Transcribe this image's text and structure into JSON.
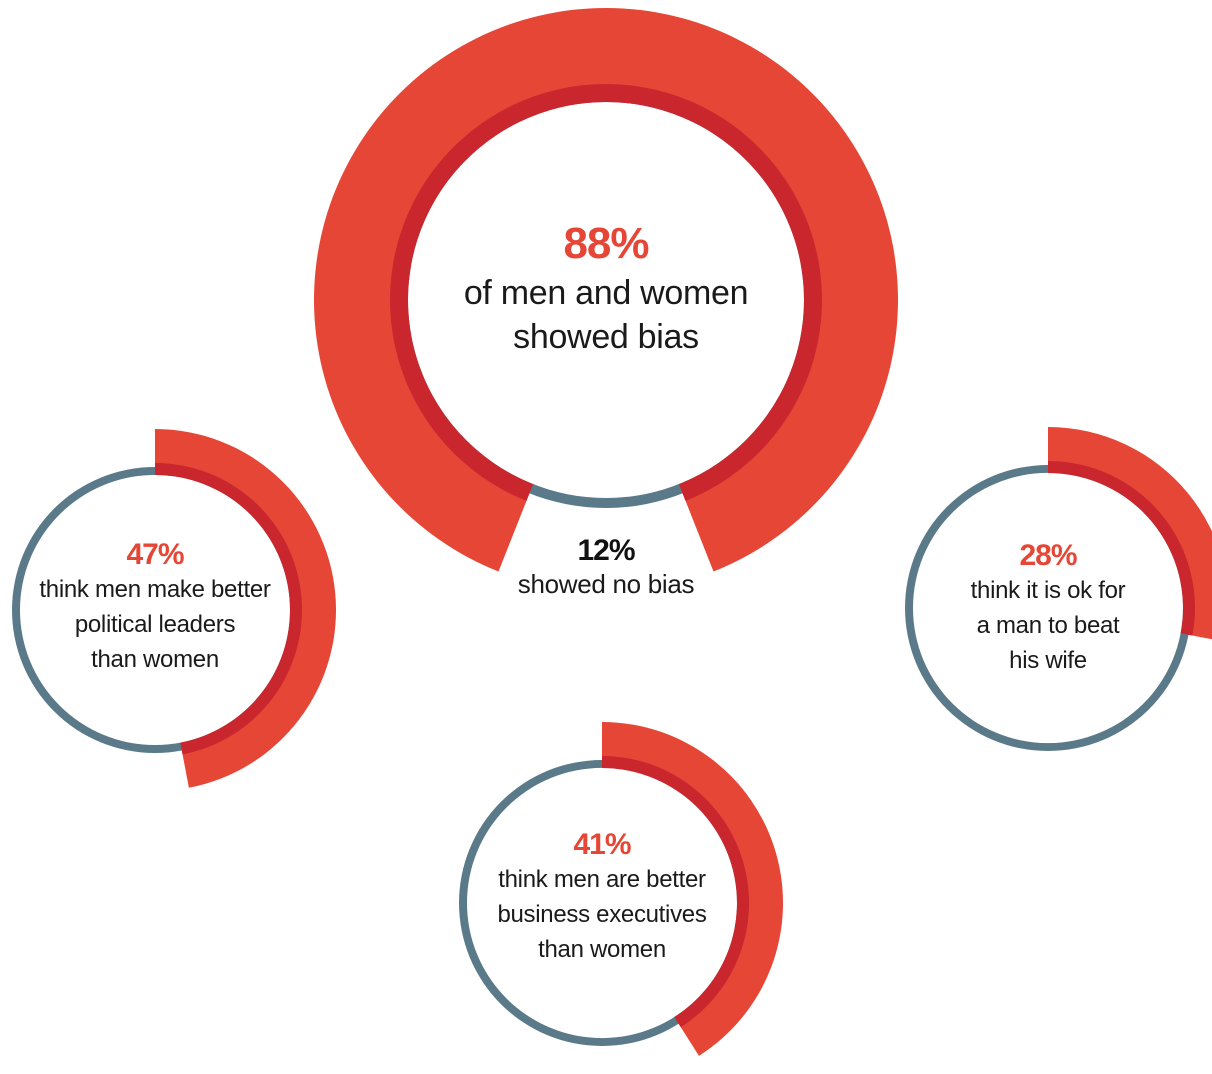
{
  "colors": {
    "outer": "#e64636",
    "inner": "#c9262e",
    "base": "#5a7a8a",
    "pct_text": "#e64636",
    "dark_text": "#111111"
  },
  "chart_data": [
    {
      "type": "pie",
      "style": "donut",
      "slices": [
        {
          "label": "of men and women showed bias",
          "value": 88,
          "display": "88%"
        },
        {
          "label": "showed no bias",
          "value": 12,
          "display": "12%"
        }
      ]
    },
    {
      "type": "pie",
      "style": "donut",
      "slices": [
        {
          "label": "think men make better political leaders than women",
          "value": 47,
          "display": "47%"
        }
      ]
    },
    {
      "type": "pie",
      "style": "donut",
      "slices": [
        {
          "label": "think men are better business executives than women",
          "value": 41,
          "display": "41%"
        }
      ]
    },
    {
      "type": "pie",
      "style": "donut",
      "slices": [
        {
          "label": "think it is ok for a man to beat his wife",
          "value": 28,
          "display": "28%"
        }
      ]
    }
  ],
  "labels": {
    "main": {
      "pct": "88%",
      "lines": [
        "of men and women",
        "showed bias"
      ]
    },
    "nobias": {
      "pct": "12%",
      "lines": [
        "showed no bias"
      ]
    },
    "leaders": {
      "pct": "47%",
      "lines": [
        "think men make better",
        "political leaders",
        "than women"
      ]
    },
    "executives": {
      "pct": "41%",
      "lines": [
        "think men are better",
        "business executives",
        "than women"
      ]
    },
    "wife": {
      "pct": "28%",
      "lines": [
        "think it is ok for",
        "a man to beat",
        "his wife"
      ]
    }
  }
}
